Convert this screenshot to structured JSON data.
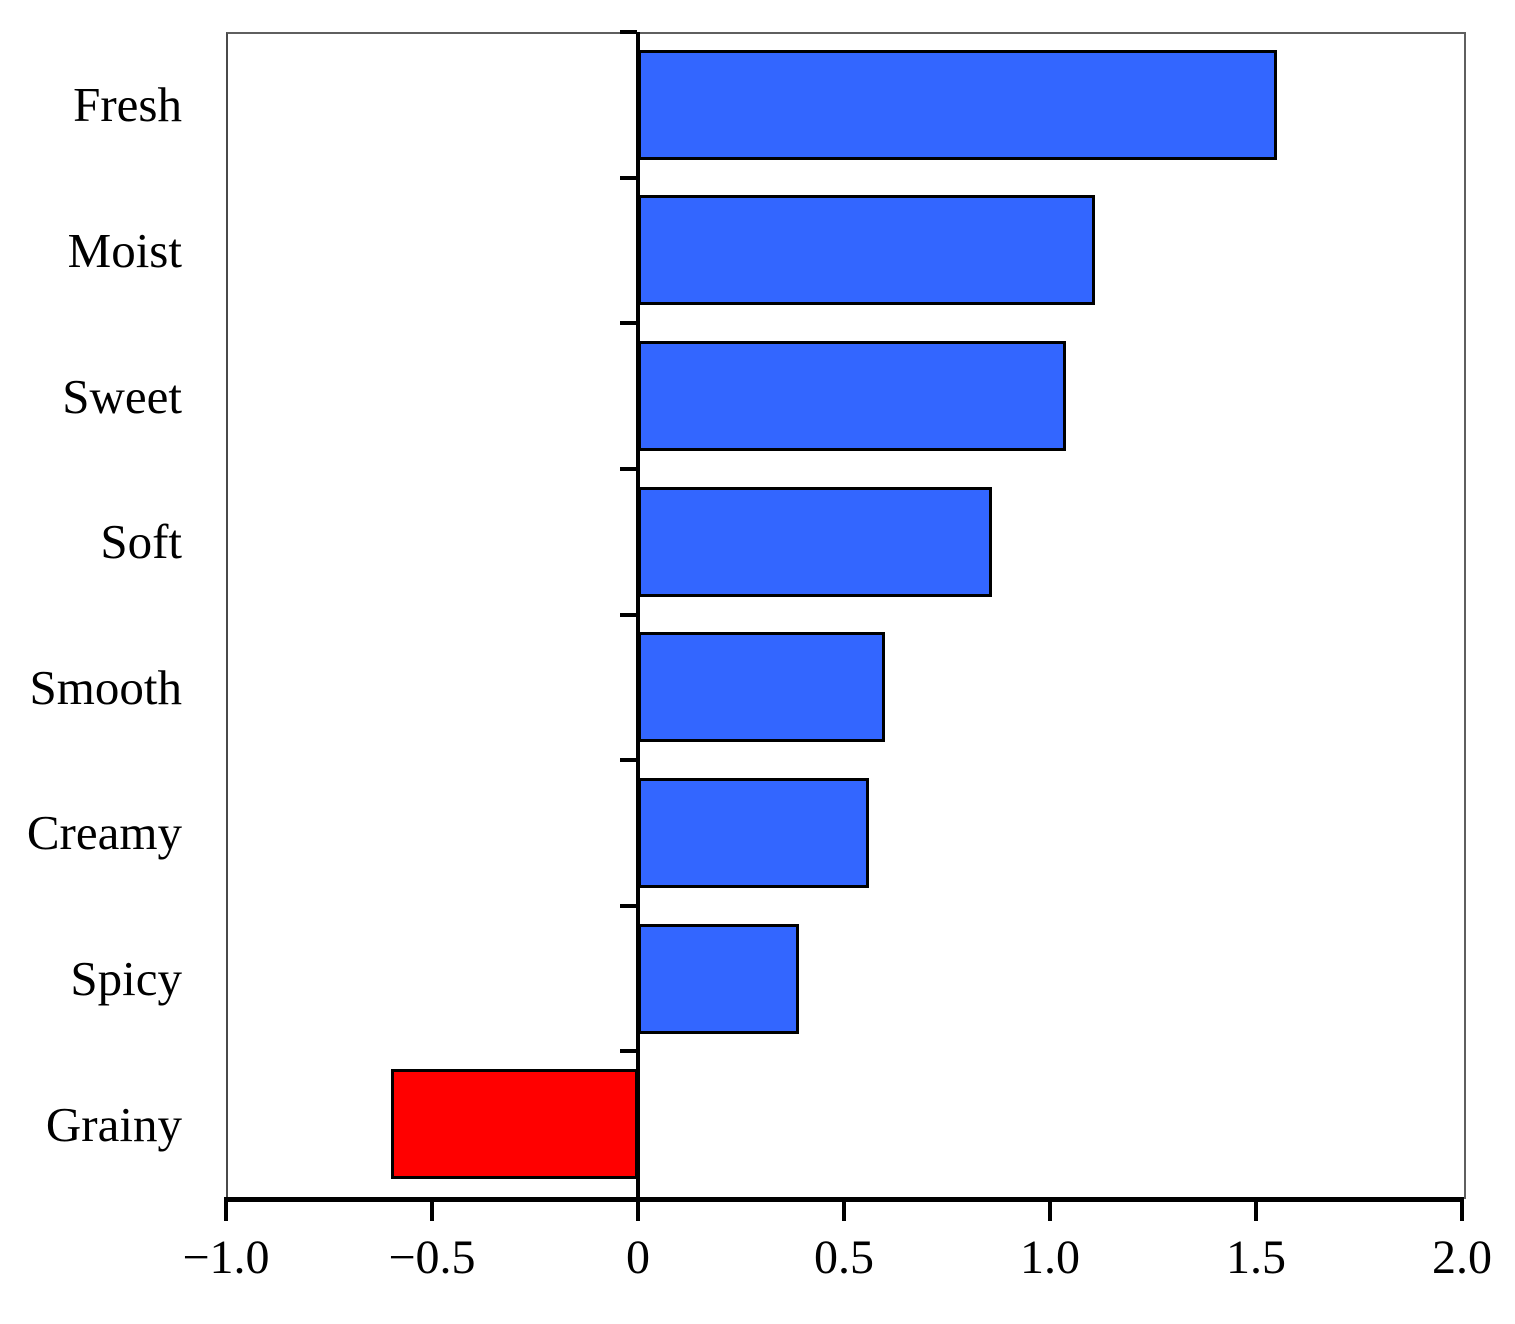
{
  "chart_data": {
    "type": "bar",
    "orientation": "horizontal",
    "title": "",
    "xlabel": "",
    "ylabel": "",
    "categories": [
      "Fresh",
      "Moist",
      "Sweet",
      "Soft",
      "Smooth",
      "Creamy",
      "Spicy",
      "Grainy"
    ],
    "values": [
      1.55,
      1.11,
      1.04,
      0.86,
      0.6,
      0.56,
      0.39,
      -0.6
    ],
    "xlim": [
      -1.0,
      2.0
    ],
    "x_ticks": [
      -1.0,
      -0.5,
      0,
      0.5,
      1.0,
      1.5,
      2.0
    ],
    "x_tick_labels": [
      "−1.0",
      "−0.5",
      "0",
      "0.5",
      "1.0",
      "1.5",
      "2.0"
    ],
    "grid": false,
    "legend": false,
    "colors": {
      "positive_bar": "#3366FF",
      "negative_bar": "#FF0000",
      "bar_border": "#000000",
      "axis": "#000000",
      "frame": "#5f5f5f"
    }
  }
}
